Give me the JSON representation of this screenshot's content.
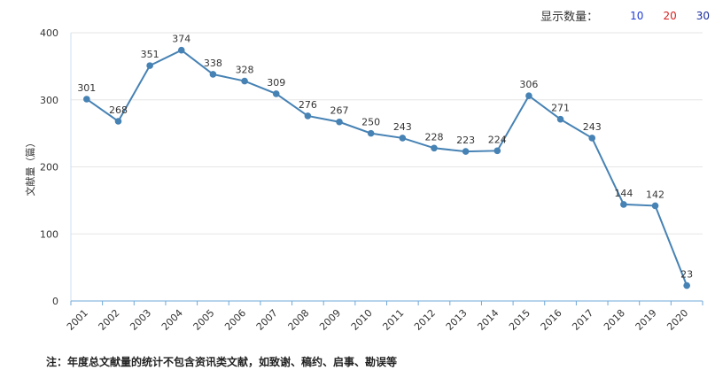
{
  "header": {
    "display_count_label": "显示数量：",
    "count_options": [
      {
        "label": "10",
        "color": "#1f3bd6"
      },
      {
        "label": "20",
        "color": "#d61f1f"
      },
      {
        "label": "30",
        "color": "#1a2ea0"
      }
    ]
  },
  "note": "注：年度总文献量的统计不包含资讯类文献，如致谢、稿约、启事、勘误等",
  "chart_data": {
    "type": "line",
    "ylabel": "文献量（篇）",
    "xlabel": "",
    "ylim": [
      0,
      400
    ],
    "yticks": [
      0,
      100,
      200,
      300,
      400
    ],
    "grid": true,
    "line_color": "#4682b4",
    "categories": [
      "2001",
      "2002",
      "2003",
      "2004",
      "2005",
      "2006",
      "2007",
      "2008",
      "2009",
      "2010",
      "2011",
      "2012",
      "2013",
      "2014",
      "2015",
      "2016",
      "2017",
      "2018",
      "2019",
      "2020"
    ],
    "values": [
      301,
      268,
      351,
      374,
      338,
      328,
      309,
      276,
      267,
      250,
      243,
      228,
      223,
      224,
      306,
      271,
      243,
      144,
      142,
      23
    ]
  }
}
